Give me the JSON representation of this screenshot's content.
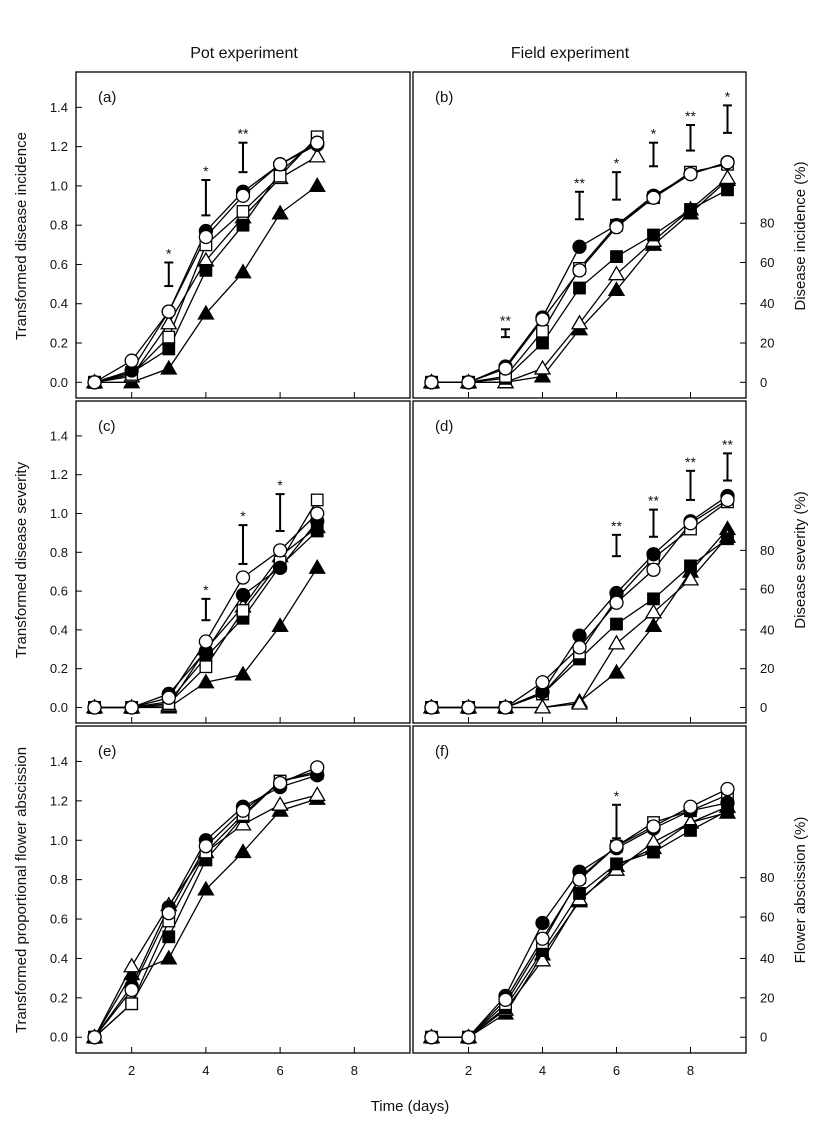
{
  "figure": {
    "left_heading": "Pot experiment",
    "right_heading": "Field experiment",
    "x_axis_label": "Time (days)"
  },
  "chart_data": [
    {
      "panel": "(a)",
      "type": "line",
      "column": "pot",
      "ylabel": "Transformed disease incidence",
      "xlim": [
        0.5,
        9.5
      ],
      "ylim": [
        -0.08,
        1.58
      ],
      "x_ticks": [
        2,
        4,
        6,
        8
      ],
      "y_ticks": [
        "0.0",
        "0.2",
        "0.4",
        "0.6",
        "0.8",
        "1.0",
        "1.2",
        "1.4"
      ],
      "x": [
        1,
        2,
        3,
        4,
        5,
        6,
        7
      ],
      "series": [
        {
          "marker": "open-circle",
          "values": [
            0,
            0.11,
            0.36,
            0.74,
            0.95,
            1.11,
            1.22
          ]
        },
        {
          "marker": "filled-circle",
          "values": [
            0,
            0.06,
            0.36,
            0.77,
            0.97,
            1.11,
            1.21
          ]
        },
        {
          "marker": "open-square",
          "values": [
            0,
            0.04,
            0.23,
            0.7,
            0.87,
            1.05,
            1.25
          ]
        },
        {
          "marker": "filled-square",
          "values": [
            0,
            0.05,
            0.17,
            0.57,
            0.8,
            1.07,
            1.24
          ]
        },
        {
          "marker": "open-triangle",
          "values": [
            0,
            0.03,
            0.3,
            0.62,
            0.84,
            1.04,
            1.15
          ]
        },
        {
          "marker": "filled-triangle",
          "values": [
            0,
            0.0,
            0.07,
            0.35,
            0.56,
            0.86,
            1.0
          ]
        }
      ],
      "error_bars": [
        {
          "x": 3,
          "low": 0.49,
          "high": 0.61,
          "label": "*"
        },
        {
          "x": 4,
          "low": 0.85,
          "high": 1.03,
          "label": "*"
        },
        {
          "x": 5,
          "low": 1.07,
          "high": 1.22,
          "label": "**"
        }
      ]
    },
    {
      "panel": "(b)",
      "type": "line",
      "column": "field",
      "ylabel": "Disease incidence (%)",
      "xlim": [
        0.5,
        9.5
      ],
      "ylim": [
        -0.08,
        1.58
      ],
      "x_ticks": [
        2,
        4,
        6,
        8
      ],
      "y_ticks_right": [
        "0",
        "20",
        "40",
        "60",
        "80"
      ],
      "x": [
        1,
        2,
        3,
        4,
        5,
        6,
        7,
        8,
        9
      ],
      "series": [
        {
          "marker": "open-circle",
          "values": [
            0,
            0,
            0.07,
            0.32,
            0.57,
            0.79,
            0.94,
            1.06,
            1.12
          ]
        },
        {
          "marker": "filled-circle",
          "values": [
            0,
            0,
            0.08,
            0.33,
            0.69,
            0.8,
            0.95,
            1.06,
            1.12
          ]
        },
        {
          "marker": "open-square",
          "values": [
            0,
            0,
            0.03,
            0.26,
            0.58,
            0.8,
            0.94,
            1.07,
            1.11
          ]
        },
        {
          "marker": "filled-square",
          "values": [
            0,
            0,
            0.02,
            0.2,
            0.48,
            0.64,
            0.75,
            0.88,
            0.98
          ]
        },
        {
          "marker": "open-triangle",
          "values": [
            0,
            0,
            0.0,
            0.07,
            0.3,
            0.55,
            0.72,
            0.88,
            1.04
          ]
        },
        {
          "marker": "filled-triangle",
          "values": [
            0,
            0,
            0.0,
            0.03,
            0.27,
            0.47,
            0.7,
            0.86,
            1.03
          ]
        }
      ],
      "error_bars": [
        {
          "x": 3,
          "low": 0.23,
          "high": 0.27,
          "label": "**"
        },
        {
          "x": 5,
          "low": 0.83,
          "high": 0.97,
          "label": "**"
        },
        {
          "x": 6,
          "low": 0.93,
          "high": 1.07,
          "label": "*"
        },
        {
          "x": 7,
          "low": 1.1,
          "high": 1.22,
          "label": "*"
        },
        {
          "x": 8,
          "low": 1.18,
          "high": 1.31,
          "label": "**"
        },
        {
          "x": 9,
          "low": 1.27,
          "high": 1.41,
          "label": "*"
        }
      ]
    },
    {
      "panel": "(c)",
      "type": "line",
      "column": "pot",
      "ylabel": "Transformed disease severity",
      "xlim": [
        0.5,
        9.5
      ],
      "ylim": [
        -0.08,
        1.58
      ],
      "x_ticks": [
        2,
        4,
        6,
        8
      ],
      "y_ticks": [
        "0.0",
        "0.2",
        "0.4",
        "0.6",
        "0.8",
        "1.0",
        "1.2",
        "1.4"
      ],
      "x": [
        1,
        2,
        3,
        4,
        5,
        6,
        7
      ],
      "series": [
        {
          "marker": "open-circle",
          "values": [
            0,
            0,
            0.05,
            0.34,
            0.67,
            0.81,
            1.0
          ]
        },
        {
          "marker": "filled-circle",
          "values": [
            0,
            0,
            0.07,
            0.29,
            0.58,
            0.72,
            0.96
          ]
        },
        {
          "marker": "open-square",
          "values": [
            0,
            0,
            0.02,
            0.21,
            0.5,
            0.75,
            1.07
          ]
        },
        {
          "marker": "filled-square",
          "values": [
            0,
            0,
            0.03,
            0.26,
            0.46,
            0.73,
            0.91
          ]
        },
        {
          "marker": "open-triangle",
          "values": [
            0,
            0,
            0.01,
            0.3,
            0.52,
            0.78,
            0.93
          ]
        },
        {
          "marker": "filled-triangle",
          "values": [
            0,
            0,
            0.0,
            0.13,
            0.17,
            0.42,
            0.72
          ]
        }
      ],
      "error_bars": [
        {
          "x": 4,
          "low": 0.45,
          "high": 0.56,
          "label": "*"
        },
        {
          "x": 5,
          "low": 0.74,
          "high": 0.94,
          "label": "*"
        },
        {
          "x": 6,
          "low": 0.91,
          "high": 1.1,
          "label": "*"
        }
      ]
    },
    {
      "panel": "(d)",
      "type": "line",
      "column": "field",
      "ylabel": "Disease severity (%)",
      "xlim": [
        0.5,
        9.5
      ],
      "ylim": [
        -0.08,
        1.58
      ],
      "x_ticks": [
        2,
        4,
        6,
        8
      ],
      "y_ticks_right": [
        "0",
        "20",
        "40",
        "60",
        "80"
      ],
      "x": [
        1,
        2,
        3,
        4,
        5,
        6,
        7,
        8,
        9
      ],
      "series": [
        {
          "marker": "open-circle",
          "values": [
            0,
            0,
            0.0,
            0.13,
            0.31,
            0.54,
            0.71,
            0.95,
            1.07
          ]
        },
        {
          "marker": "filled-circle",
          "values": [
            0,
            0,
            0.0,
            0.08,
            0.37,
            0.59,
            0.79,
            0.96,
            1.09
          ]
        },
        {
          "marker": "open-square",
          "values": [
            0,
            0,
            0.0,
            0.07,
            0.28,
            0.56,
            0.77,
            0.92,
            1.06
          ]
        },
        {
          "marker": "filled-square",
          "values": [
            0,
            0,
            0.0,
            0.07,
            0.25,
            0.43,
            0.56,
            0.73,
            0.87
          ]
        },
        {
          "marker": "open-triangle",
          "values": [
            0,
            0,
            0.0,
            0.0,
            0.02,
            0.33,
            0.49,
            0.66,
            0.88
          ]
        },
        {
          "marker": "filled-triangle",
          "values": [
            0,
            0,
            0.0,
            0.0,
            0.03,
            0.18,
            0.42,
            0.7,
            0.92
          ]
        }
      ],
      "error_bars": [
        {
          "x": 6,
          "low": 0.78,
          "high": 0.89,
          "label": "**"
        },
        {
          "x": 7,
          "low": 0.88,
          "high": 1.02,
          "label": "**"
        },
        {
          "x": 8,
          "low": 1.07,
          "high": 1.22,
          "label": "**"
        },
        {
          "x": 9,
          "low": 1.17,
          "high": 1.31,
          "label": "**"
        }
      ]
    },
    {
      "panel": "(e)",
      "type": "line",
      "column": "pot",
      "ylabel": "Transformed proportional flower abscission",
      "xlim": [
        0.5,
        9.5
      ],
      "ylim": [
        -0.08,
        1.58
      ],
      "x_ticks": [
        2,
        4,
        6,
        8
      ],
      "y_ticks": [
        "0.0",
        "0.2",
        "0.4",
        "0.6",
        "0.8",
        "1.0",
        "1.2",
        "1.4"
      ],
      "x": [
        1,
        2,
        3,
        4,
        5,
        6,
        7
      ],
      "series": [
        {
          "marker": "open-circle",
          "values": [
            0,
            0.24,
            0.63,
            0.97,
            1.15,
            1.29,
            1.37
          ]
        },
        {
          "marker": "filled-circle",
          "values": [
            0,
            0.26,
            0.66,
            1.0,
            1.17,
            1.27,
            1.33
          ]
        },
        {
          "marker": "open-square",
          "values": [
            0,
            0.17,
            0.59,
            0.94,
            1.13,
            1.3,
            1.35
          ]
        },
        {
          "marker": "filled-square",
          "values": [
            0,
            0.17,
            0.51,
            0.9,
            1.12,
            1.3,
            1.34
          ]
        },
        {
          "marker": "open-triangle",
          "values": [
            0,
            0.36,
            0.67,
            0.94,
            1.08,
            1.18,
            1.23
          ]
        },
        {
          "marker": "filled-triangle",
          "values": [
            0,
            0.32,
            0.4,
            0.75,
            0.94,
            1.15,
            1.21
          ]
        }
      ],
      "error_bars": []
    },
    {
      "panel": "(f)",
      "type": "line",
      "column": "field",
      "ylabel": "Flower abscission (%)",
      "xlim": [
        0.5,
        9.5
      ],
      "ylim": [
        -0.08,
        1.58
      ],
      "x_ticks": [
        2,
        4,
        6,
        8
      ],
      "y_ticks_right": [
        "0",
        "20",
        "40",
        "60",
        "80"
      ],
      "x": [
        1,
        2,
        3,
        4,
        5,
        6,
        7,
        8,
        9
      ],
      "series": [
        {
          "marker": "open-circle",
          "values": [
            0,
            0,
            0.19,
            0.5,
            0.8,
            0.97,
            1.07,
            1.17,
            1.26
          ]
        },
        {
          "marker": "filled-circle",
          "values": [
            0,
            0,
            0.21,
            0.58,
            0.84,
            0.96,
            1.06,
            1.15,
            1.19
          ]
        },
        {
          "marker": "open-square",
          "values": [
            0,
            0,
            0.17,
            0.48,
            0.81,
            0.97,
            1.09,
            1.15,
            1.23
          ]
        },
        {
          "marker": "filled-square",
          "values": [
            0,
            0,
            0.15,
            0.44,
            0.73,
            0.88,
            0.94,
            1.05,
            1.15
          ]
        },
        {
          "marker": "open-triangle",
          "values": [
            0,
            0,
            0.14,
            0.39,
            0.7,
            0.85,
            0.99,
            1.09,
            1.17
          ]
        },
        {
          "marker": "filled-triangle",
          "values": [
            0,
            0,
            0.12,
            0.42,
            0.69,
            0.87,
            0.96,
            1.09,
            1.14
          ]
        }
      ],
      "error_bars": [
        {
          "x": 6,
          "low": 1.01,
          "high": 1.18,
          "label": "*"
        }
      ]
    }
  ]
}
